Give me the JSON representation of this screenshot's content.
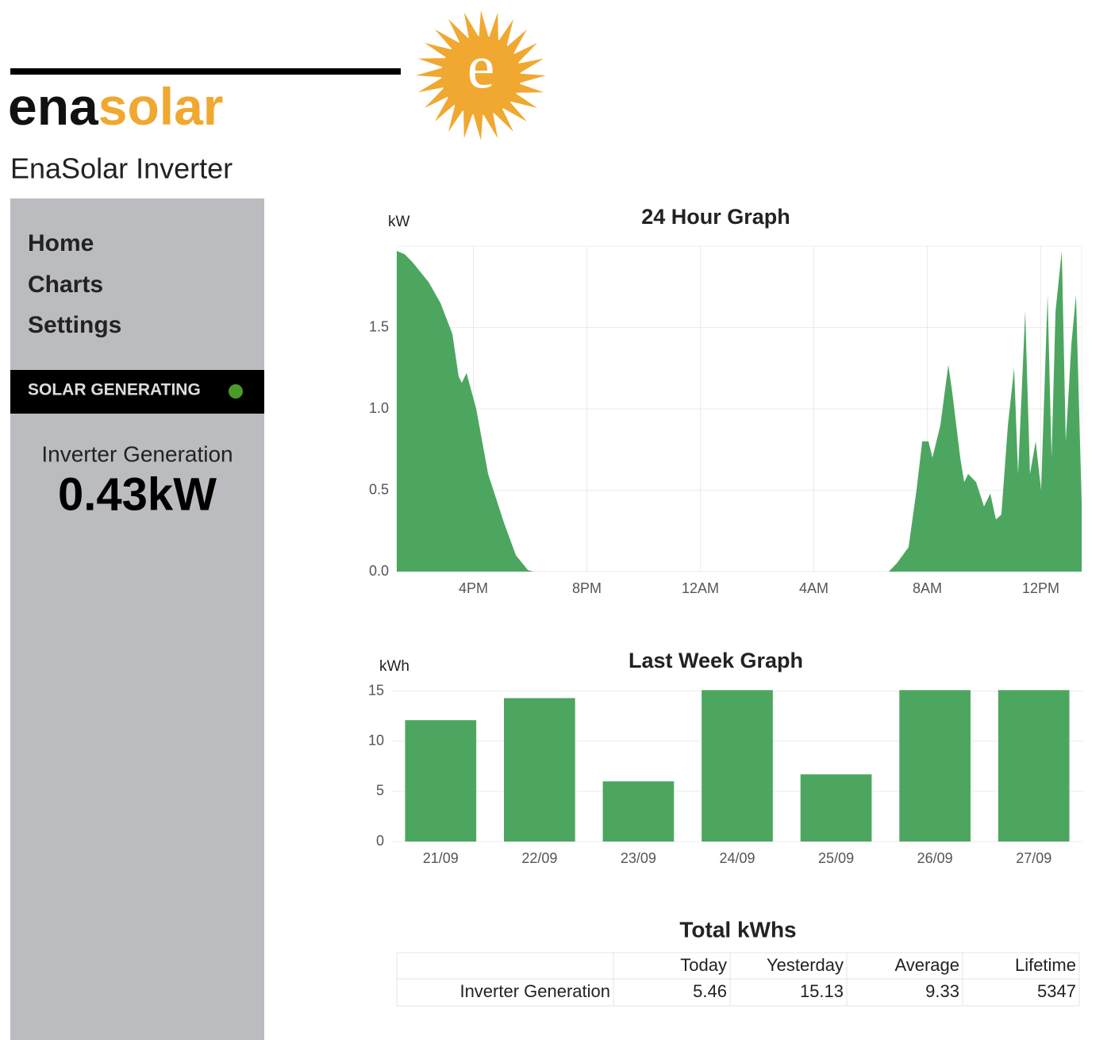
{
  "header": {
    "logo_left": "ena",
    "logo_right": "solar",
    "logo_mark": "e",
    "title": "EnaSolar Inverter"
  },
  "nav": [
    "Home",
    "Charts",
    "Settings"
  ],
  "status": "SOLAR GENERATING",
  "generation": {
    "label": "Inverter Generation",
    "value": "0.43kW"
  },
  "chart_data": [
    {
      "type": "area",
      "title": "24 Hour Graph",
      "y_label": "kW",
      "color": "#4da660",
      "grid": true,
      "x": [
        13.3,
        13.58,
        13.86,
        14.42,
        14.84,
        15.26,
        15.48,
        15.59,
        15.76,
        16.1,
        16.52,
        16.8,
        17.08,
        17.5,
        17.92,
        18.11,
        30.64,
        30.92,
        31.34,
        31.62,
        31.82,
        32.04,
        32.18,
        32.46,
        32.74,
        32.88,
        33.16,
        33.3,
        33.44,
        33.72,
        34.0,
        34.22,
        34.42,
        34.61,
        34.84,
        35.06,
        35.2,
        35.45,
        35.62,
        35.82,
        36.01,
        36.24,
        36.38,
        36.52,
        36.74,
        36.88,
        37.08,
        37.24,
        37.44
      ],
      "values": [
        1.97,
        1.95,
        1.9,
        1.78,
        1.65,
        1.46,
        1.2,
        1.16,
        1.22,
        1.0,
        0.6,
        0.45,
        0.3,
        0.1,
        0.01,
        0,
        0,
        0.05,
        0.15,
        0.5,
        0.8,
        0.8,
        0.7,
        0.9,
        1.27,
        1.1,
        0.7,
        0.55,
        0.6,
        0.55,
        0.4,
        0.48,
        0.32,
        0.35,
        0.9,
        1.25,
        0.6,
        1.6,
        0.6,
        0.8,
        0.5,
        1.7,
        0.7,
        1.6,
        1.97,
        0.8,
        1.4,
        1.7,
        0.43
      ],
      "xlim": [
        13.3,
        37.44
      ],
      "xticks": [
        {
          "value": 16,
          "label": "4PM"
        },
        {
          "value": 20,
          "label": "8PM"
        },
        {
          "value": 24,
          "label": "12AM"
        },
        {
          "value": 28,
          "label": "4AM"
        },
        {
          "value": 32,
          "label": "8AM"
        },
        {
          "value": 36,
          "label": "12PM"
        }
      ],
      "ylim": [
        0,
        2
      ],
      "yticks": [
        {
          "value": 0,
          "label": "0.0"
        },
        0.5,
        {
          "value": 1,
          "label": "1.0"
        },
        1.5
      ]
    },
    {
      "type": "bar",
      "title": "Last Week Graph",
      "y_label": "kWh",
      "color": "#4da660",
      "grid": true,
      "categories": [
        "21/09",
        "22/09",
        "23/09",
        "24/09",
        "25/09",
        "26/09",
        "27/09"
      ],
      "values": [
        12.1,
        14.3,
        6.0,
        15.1,
        6.7,
        15.1,
        15.1
      ],
      "ylim": [
        0,
        15.2
      ],
      "yticks": [
        0,
        5,
        10,
        15
      ]
    }
  ],
  "table": {
    "title": "Total kWhs",
    "columns": [
      "Today",
      "Yesterday",
      "Average",
      "Lifetime"
    ],
    "rows": [
      [
        "Inverter Generation",
        "5.46",
        "15.13",
        "9.33",
        "5347"
      ]
    ]
  }
}
